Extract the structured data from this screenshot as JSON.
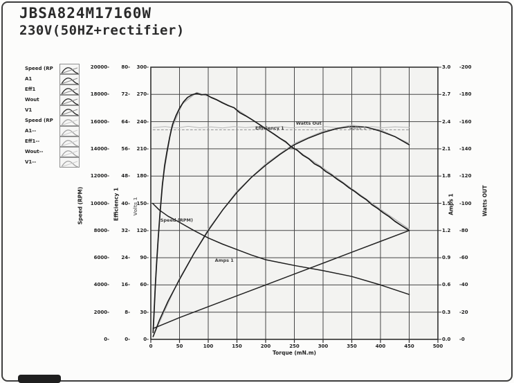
{
  "header": {
    "title": "JBSA824M17160W",
    "subtitle": "230V(50HZ+rectifier)"
  },
  "legend": {
    "items": [
      {
        "label": "Speed (RP",
        "tone": "dark"
      },
      {
        "label": "A1",
        "tone": "dark"
      },
      {
        "label": "Eff1",
        "tone": "dark"
      },
      {
        "label": "Wout",
        "tone": "dark"
      },
      {
        "label": "V1",
        "tone": "dark"
      },
      {
        "label": "Speed (RP",
        "tone": "light"
      },
      {
        "label": "A1--",
        "tone": "light"
      },
      {
        "label": "Eff1--",
        "tone": "light"
      },
      {
        "label": "Wout--",
        "tone": "light"
      },
      {
        "label": "V1--",
        "tone": "light"
      }
    ]
  },
  "chart_data": {
    "type": "line",
    "title": "JBSA824M17160W 230V(50HZ+rectifier)",
    "xlabel": "Torque (mN.m)",
    "grid": true,
    "legend_position": "left",
    "x_axis": {
      "min": 0,
      "max": 500,
      "step": 50
    },
    "y_axes": [
      {
        "id": "speed",
        "title": "Speed (RPM)",
        "min": 0,
        "max": 20000,
        "step": 2000,
        "side": "left",
        "format": "int"
      },
      {
        "id": "eff",
        "title": "Efficiency 1",
        "min": 0,
        "max": 80,
        "step": 8,
        "side": "left",
        "format": "int"
      },
      {
        "id": "volts",
        "title": "Volts 1",
        "min": 0,
        "max": 300,
        "step": 30,
        "side": "left",
        "format": "int"
      },
      {
        "id": "amps",
        "title": "Amps 1",
        "min": 0,
        "max": 3.0,
        "step": 0.3,
        "side": "right",
        "format": "dec1"
      },
      {
        "id": "watts",
        "title": "Watts OUT",
        "min": 0,
        "max": 200,
        "step": 20,
        "side": "right",
        "format": "int"
      }
    ],
    "series": [
      {
        "name": "Eff1--",
        "axis": "eff",
        "color": "#b5b5b5",
        "width": 1.4,
        "dash": null,
        "points": [
          [
            4,
            3
          ],
          [
            10,
            23
          ],
          [
            20,
            46
          ],
          [
            35,
            61.4
          ],
          [
            55,
            69.2
          ],
          [
            80,
            72.6
          ],
          [
            110,
            70.9
          ],
          [
            150,
            67.6
          ],
          [
            200,
            61.9
          ],
          [
            250,
            56.1
          ],
          [
            300,
            50.4
          ],
          [
            350,
            44.3
          ],
          [
            400,
            38.2
          ],
          [
            450,
            32.4
          ]
        ]
      },
      {
        "name": "Wout--",
        "axis": "watts",
        "color": "#bdbdbd",
        "width": 1.3,
        "dash": null,
        "points": [
          [
            4,
            2
          ],
          [
            50,
            45
          ],
          [
            100,
            81
          ],
          [
            150,
            109
          ],
          [
            200,
            129
          ],
          [
            250,
            144
          ],
          [
            300,
            153
          ],
          [
            350,
            157.5
          ],
          [
            400,
            154
          ],
          [
            450,
            144
          ]
        ]
      },
      {
        "name": "V1--",
        "axis": "volts",
        "color": "#b8b8b8",
        "width": 1,
        "dash": null,
        "points": [
          [
            4,
            233.5
          ],
          [
            25,
            234.5
          ],
          [
            45,
            233
          ],
          [
            65,
            234.8
          ],
          [
            85,
            233.2
          ],
          [
            105,
            234.2
          ],
          [
            125,
            233
          ],
          [
            145,
            234.5
          ],
          [
            165,
            233.4
          ],
          [
            185,
            234.6
          ],
          [
            205,
            233.2
          ],
          [
            225,
            234.4
          ],
          [
            245,
            233.1
          ],
          [
            265,
            234.3
          ],
          [
            285,
            233.5
          ],
          [
            305,
            234.6
          ],
          [
            325,
            233.2
          ],
          [
            345,
            234.2
          ],
          [
            365,
            233.4
          ],
          [
            385,
            234.5
          ],
          [
            405,
            233.3
          ],
          [
            425,
            234.3
          ],
          [
            450,
            233.6
          ]
        ]
      },
      {
        "name": "Volts 1",
        "axis": "volts",
        "color": "#8f8f8f",
        "width": 1,
        "dash": "3 3",
        "points": [
          [
            4,
            231
          ],
          [
            450,
            231
          ]
        ]
      },
      {
        "name": "Amps 1",
        "axis": "amps",
        "color": "#232323",
        "width": 1.5,
        "dash": null,
        "points": [
          [
            4,
            0.12
          ],
          [
            50,
            0.24
          ],
          [
            100,
            0.36
          ],
          [
            150,
            0.48
          ],
          [
            200,
            0.6
          ],
          [
            250,
            0.72
          ],
          [
            300,
            0.84
          ],
          [
            350,
            0.96
          ],
          [
            400,
            1.08
          ],
          [
            450,
            1.2
          ]
        ]
      },
      {
        "name": "Watts Out",
        "axis": "watts",
        "color": "#1e1e1e",
        "width": 1.6,
        "dash": null,
        "points": [
          [
            4,
            2
          ],
          [
            15,
            14
          ],
          [
            30,
            28
          ],
          [
            50,
            44
          ],
          [
            75,
            63
          ],
          [
            100,
            80
          ],
          [
            125,
            95
          ],
          [
            150,
            108
          ],
          [
            175,
            119
          ],
          [
            200,
            128
          ],
          [
            225,
            136
          ],
          [
            250,
            143
          ],
          [
            275,
            148
          ],
          [
            300,
            152
          ],
          [
            325,
            155
          ],
          [
            350,
            156.5
          ],
          [
            375,
            156
          ],
          [
            400,
            153
          ],
          [
            425,
            149
          ],
          [
            450,
            143
          ]
        ]
      },
      {
        "name": "Speed (RPM)",
        "axis": "speed",
        "color": "#1e1e1e",
        "width": 1.5,
        "dash": null,
        "points": [
          [
            3,
            10000
          ],
          [
            15,
            9500
          ],
          [
            30,
            9050
          ],
          [
            50,
            8600
          ],
          [
            75,
            8000
          ],
          [
            100,
            7450
          ],
          [
            125,
            7000
          ],
          [
            150,
            6600
          ],
          [
            175,
            6200
          ],
          [
            200,
            5850
          ],
          [
            250,
            5430
          ],
          [
            300,
            5050
          ],
          [
            350,
            4620
          ],
          [
            400,
            4000
          ],
          [
            450,
            3300
          ]
        ]
      },
      {
        "name": "Efficiency 1",
        "axis": "eff",
        "color": "#1a1a1a",
        "width": 1.7,
        "dash": null,
        "points": [
          [
            4,
            2
          ],
          [
            6,
            9
          ],
          [
            8,
            16
          ],
          [
            10,
            22
          ],
          [
            13,
            30
          ],
          [
            16,
            37
          ],
          [
            20,
            45
          ],
          [
            24,
            51
          ],
          [
            28,
            55
          ],
          [
            33,
            59.5
          ],
          [
            38,
            63.2
          ],
          [
            44,
            65.8
          ],
          [
            50,
            67.9
          ],
          [
            57,
            69.8
          ],
          [
            64,
            71.1
          ],
          [
            72,
            71.9
          ],
          [
            80,
            72.3
          ],
          [
            88,
            71.9
          ],
          [
            96,
            72.0
          ],
          [
            105,
            71.1
          ],
          [
            115,
            70.4
          ],
          [
            125,
            69.5
          ],
          [
            135,
            68.7
          ],
          [
            145,
            68.1
          ],
          [
            155,
            66.6
          ],
          [
            165,
            65.7
          ],
          [
            175,
            64.7
          ],
          [
            185,
            63.6
          ],
          [
            195,
            62.5
          ],
          [
            205,
            61.4
          ],
          [
            215,
            60.3
          ],
          [
            225,
            59.1
          ],
          [
            235,
            58.1
          ],
          [
            245,
            56.5
          ],
          [
            255,
            55.6
          ],
          [
            265,
            54.1
          ],
          [
            275,
            53.1
          ],
          [
            285,
            51.6
          ],
          [
            295,
            50.7
          ],
          [
            305,
            49.3
          ],
          [
            315,
            48.3
          ],
          [
            325,
            47.0
          ],
          [
            335,
            45.9
          ],
          [
            345,
            44.6
          ],
          [
            355,
            43.5
          ],
          [
            365,
            42.2
          ],
          [
            375,
            41.1
          ],
          [
            385,
            39.6
          ],
          [
            395,
            38.5
          ],
          [
            405,
            37.2
          ],
          [
            415,
            36.1
          ],
          [
            425,
            34.7
          ],
          [
            435,
            33.6
          ],
          [
            450,
            32.0
          ]
        ]
      }
    ],
    "annotations": [
      {
        "text": "Speed (RPM)",
        "axis": "speed",
        "t": 45,
        "v": 8750,
        "tone": "dark"
      },
      {
        "text": "Amps 1",
        "axis": "amps",
        "t": 128,
        "v": 0.87,
        "tone": "dark"
      },
      {
        "text": "Efficiency 1",
        "axis": "eff",
        "t": 207,
        "v": 62,
        "tone": "dark"
      },
      {
        "text": "Watts Out",
        "axis": "watts",
        "t": 275,
        "v": 159,
        "tone": "dark"
      },
      {
        "text": "Volts 1",
        "axis": "volts",
        "t": 360,
        "v": 233,
        "tone": "soft"
      }
    ]
  }
}
